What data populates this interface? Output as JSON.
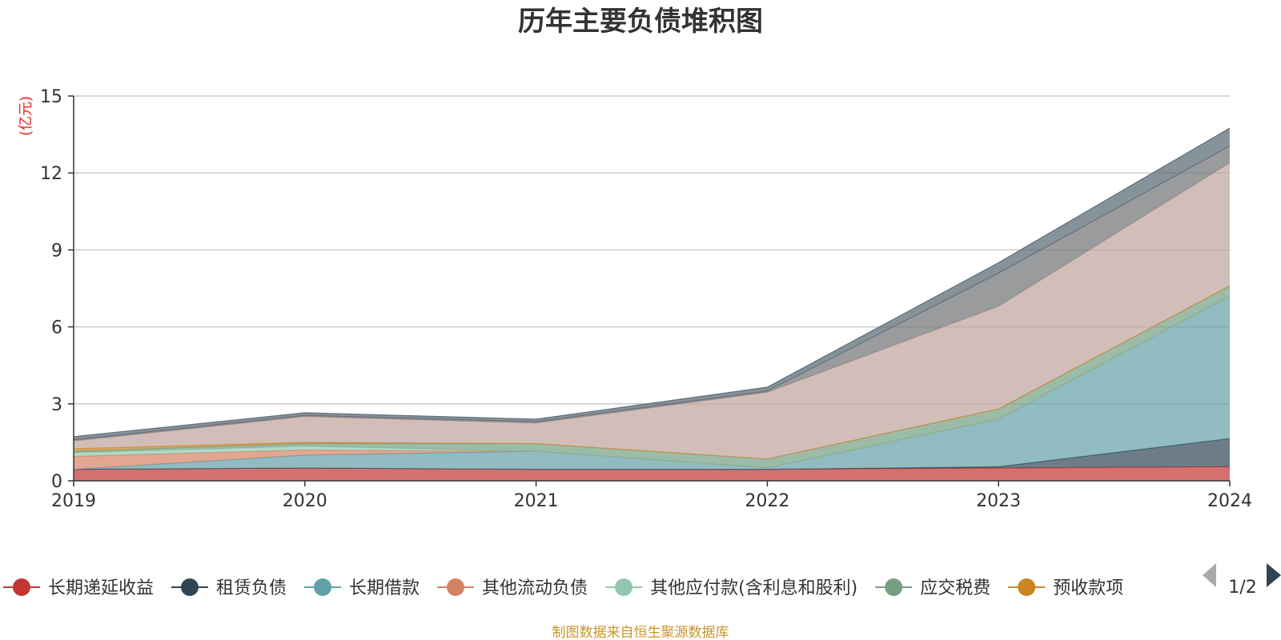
{
  "chart_data": {
    "type": "area",
    "title": "历年主要负债堆积图",
    "unit_label": "(亿元)",
    "x": [
      "2019",
      "2020",
      "2021",
      "2022",
      "2023",
      "2024"
    ],
    "ylim": [
      0,
      15
    ],
    "yticks": [
      "0",
      "3",
      "6",
      "9",
      "12",
      "15"
    ],
    "grid": true,
    "stacked": true,
    "legend_position": "bottom",
    "series": [
      {
        "name": "长期递延收益",
        "color": "#c23531",
        "values": [
          0.45,
          0.5,
          0.45,
          0.45,
          0.5,
          0.55
        ]
      },
      {
        "name": "租赁负债",
        "color": "#2f4554",
        "values": [
          0.0,
          0.0,
          0.0,
          0.0,
          0.05,
          1.1
        ]
      },
      {
        "name": "长期借款",
        "color": "#61a0a8",
        "values": [
          0.0,
          0.5,
          0.7,
          0.05,
          1.85,
          5.55
        ]
      },
      {
        "name": "其他流动负债",
        "color": "#d48265",
        "values": [
          0.5,
          0.2,
          0.0,
          0.0,
          0.0,
          0.0
        ]
      },
      {
        "name": "其他应付款(含利息和股利)",
        "color": "#91c7ae",
        "values": [
          0.15,
          0.15,
          0.0,
          0.0,
          0.0,
          0.0
        ]
      },
      {
        "name": "应交税费",
        "color": "#749f83",
        "values": [
          0.05,
          0.1,
          0.3,
          0.35,
          0.4,
          0.4
        ]
      },
      {
        "name": "预收款项",
        "color": "#ca8622",
        "values": [
          0.1,
          0.05,
          0.0,
          0.0,
          0.0,
          0.0
        ]
      },
      {
        "name": "",
        "color": "#bda29a",
        "values": [
          0.3,
          1.0,
          0.8,
          2.6,
          4.0,
          4.8
        ]
      },
      {
        "name": "",
        "color": "#6e7074",
        "values": [
          0.05,
          0.05,
          0.05,
          0.05,
          1.3,
          0.65
        ]
      },
      {
        "name": "",
        "color": "#546570",
        "values": [
          0.12,
          0.1,
          0.1,
          0.15,
          0.4,
          0.7
        ]
      }
    ]
  },
  "legend": {
    "visible_items": [
      "长期递延收益",
      "租赁负债",
      "长期借款",
      "其他流动负债",
      "其他应付款(含利息和股利)",
      "应交税费",
      "预收款项"
    ],
    "page_indicator": "1/2"
  },
  "source_text": "制图数据来自恒生聚源数据库"
}
